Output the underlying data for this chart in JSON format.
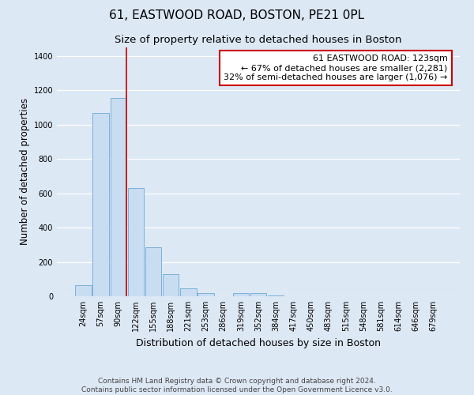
{
  "title": "61, EASTWOOD ROAD, BOSTON, PE21 0PL",
  "subtitle": "Size of property relative to detached houses in Boston",
  "xlabel": "Distribution of detached houses by size in Boston",
  "ylabel": "Number of detached properties",
  "bar_labels": [
    "24sqm",
    "57sqm",
    "90sqm",
    "122sqm",
    "155sqm",
    "188sqm",
    "221sqm",
    "253sqm",
    "286sqm",
    "319sqm",
    "352sqm",
    "384sqm",
    "417sqm",
    "450sqm",
    "483sqm",
    "515sqm",
    "548sqm",
    "581sqm",
    "614sqm",
    "646sqm",
    "679sqm"
  ],
  "bar_values": [
    65,
    1070,
    1155,
    630,
    285,
    130,
    45,
    20,
    0,
    20,
    18,
    5,
    0,
    0,
    0,
    0,
    0,
    0,
    0,
    0,
    0
  ],
  "bar_color": "#c9ddf2",
  "bar_edge_color": "#7ab0d8",
  "bar_edge_width": 0.7,
  "property_line_color": "#cc0000",
  "annotation_text": "61 EASTWOOD ROAD: 123sqm\n← 67% of detached houses are smaller (2,281)\n32% of semi-detached houses are larger (1,076) →",
  "annotation_box_color": "#ffffff",
  "annotation_box_edge_color": "#cc0000",
  "ylim": [
    0,
    1450
  ],
  "yticks": [
    0,
    200,
    400,
    600,
    800,
    1000,
    1200,
    1400
  ],
  "background_color": "#dde8f5",
  "plot_bg_color": "#dde8f5",
  "grid_color": "#ffffff",
  "footer_line1": "Contains HM Land Registry data © Crown copyright and database right 2024.",
  "footer_line2": "Contains public sector information licensed under the Open Government Licence v3.0.",
  "title_fontsize": 11,
  "subtitle_fontsize": 9.5,
  "xlabel_fontsize": 9,
  "ylabel_fontsize": 8.5,
  "tick_fontsize": 7,
  "annotation_fontsize": 8,
  "footer_fontsize": 6.5
}
